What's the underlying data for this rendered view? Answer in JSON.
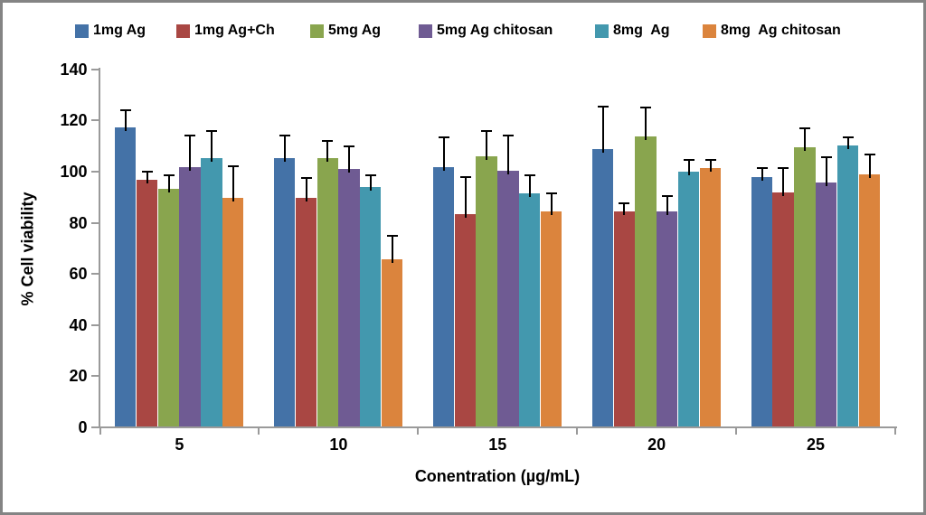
{
  "chart_data": {
    "type": "bar",
    "title": "",
    "xlabel": "Conentration (µg/mL)",
    "ylabel": "% Cell viability",
    "categories": [
      "5",
      "10",
      "15",
      "20",
      "25"
    ],
    "ylim": [
      0,
      140
    ],
    "y_ticks": [
      0,
      20,
      40,
      60,
      80,
      100,
      120,
      140
    ],
    "grid": false,
    "legend_position": "top",
    "error_bars": "upper_only",
    "series": [
      {
        "name": "1mg Ag",
        "color": "#4472A7",
        "values": [
          117,
          105,
          101.5,
          108.5,
          97.5
        ],
        "errors_up": [
          7,
          9,
          12,
          17,
          4
        ]
      },
      {
        "name": "1mg Ag+Ch",
        "color": "#A94743",
        "values": [
          96.5,
          89.5,
          83,
          84,
          91.5
        ],
        "errors_up": [
          3.5,
          8,
          15,
          3.5,
          10
        ]
      },
      {
        "name": "5mg Ag",
        "color": "#89A54E",
        "values": [
          93,
          105,
          105.5,
          113.5,
          109
        ],
        "errors_up": [
          5.5,
          7,
          10.5,
          11.5,
          8
        ]
      },
      {
        "name": "5mg Ag chitosan",
        "color": "#6F5B93",
        "values": [
          101.5,
          100.5,
          100,
          84,
          95.5
        ],
        "errors_up": [
          12.5,
          9.5,
          14,
          6.5,
          10
        ]
      },
      {
        "name": "8mg  Ag",
        "color": "#4398AE",
        "values": [
          105,
          93.5,
          91,
          99.5,
          110
        ],
        "errors_up": [
          11,
          5,
          7.5,
          5,
          3.5
        ]
      },
      {
        "name": "8mg  Ag chitosan",
        "color": "#DB843D",
        "values": [
          89.5,
          65.5,
          84,
          101,
          98.5
        ],
        "errors_up": [
          12.5,
          9.5,
          7.5,
          3.5,
          8
        ]
      }
    ]
  }
}
